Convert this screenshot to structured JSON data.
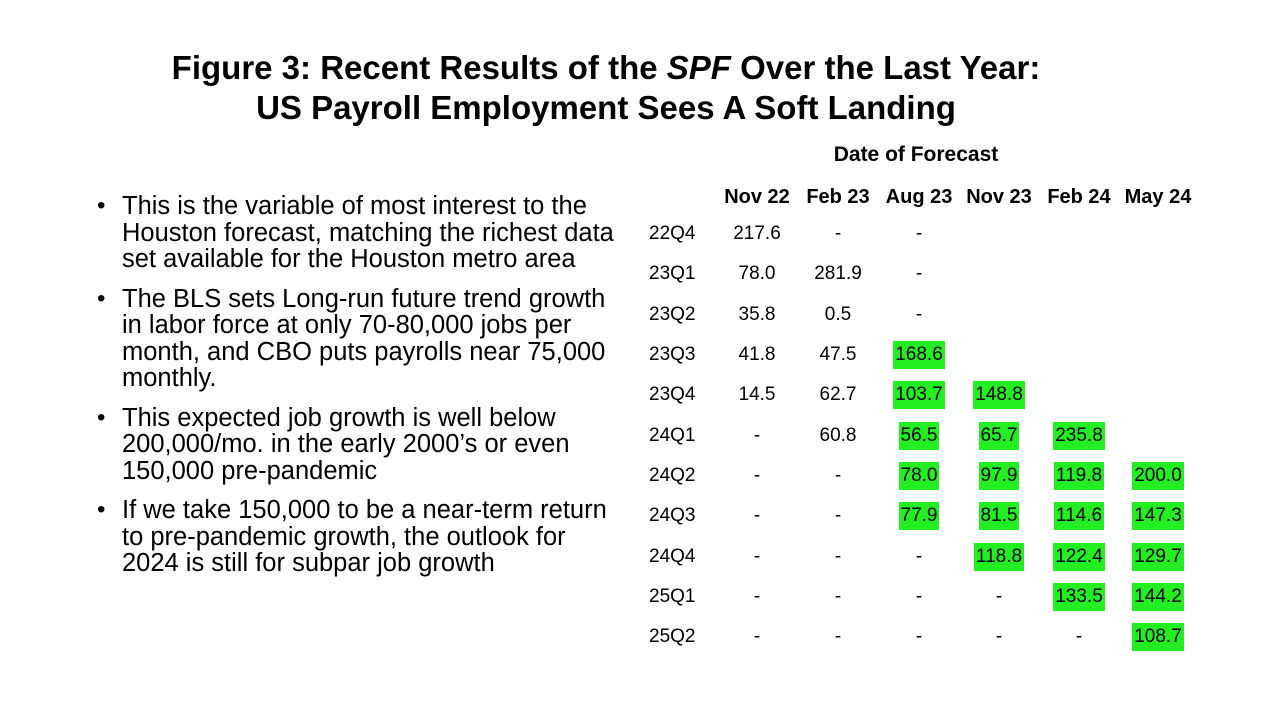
{
  "title": {
    "line1_prefix": "Figure 3: Recent Results of the ",
    "line1_italic": "SPF",
    "line1_suffix": " Over the Last Year:",
    "line2": "US Payroll Employment Sees A Soft Landing"
  },
  "bullets": [
    "This is the variable of most interest to the Houston forecast, matching the richest data set available for the Houston metro area",
    "The BLS sets Long-run future trend growth in labor force at only 70-80,000 jobs per month, and CBO puts payrolls near 75,000 monthly.",
    "This expected job growth is well below 200,000/mo. in the early 2000’s or even 150,000 pre-pandemic",
    "If we take 150,000 to be a near-term return to pre-pandemic growth, the outlook for 2024 is still for subpar job growth"
  ],
  "bullet_glyph": "•",
  "table": {
    "heading": "Date of Forecast",
    "columns": [
      "Nov 22",
      "Feb 23",
      "Aug 23",
      "Nov 23",
      "Feb 24",
      "May 24"
    ],
    "highlight_color": "#22ee22",
    "rows": [
      {
        "label": "22Q4",
        "cells": [
          {
            "v": "217.6",
            "hl": false
          },
          {
            "v": "-",
            "hl": false
          },
          {
            "v": "-",
            "hl": false
          },
          {
            "v": "",
            "hl": false
          },
          {
            "v": "",
            "hl": false
          },
          {
            "v": "",
            "hl": false
          }
        ]
      },
      {
        "label": "23Q1",
        "cells": [
          {
            "v": "78.0",
            "hl": false
          },
          {
            "v": "281.9",
            "hl": false
          },
          {
            "v": "-",
            "hl": false
          },
          {
            "v": "",
            "hl": false
          },
          {
            "v": "",
            "hl": false
          },
          {
            "v": "",
            "hl": false
          }
        ]
      },
      {
        "label": "23Q2",
        "cells": [
          {
            "v": "35.8",
            "hl": false
          },
          {
            "v": "0.5",
            "hl": false
          },
          {
            "v": "-",
            "hl": false
          },
          {
            "v": "",
            "hl": false
          },
          {
            "v": "",
            "hl": false
          },
          {
            "v": "",
            "hl": false
          }
        ]
      },
      {
        "label": "23Q3",
        "cells": [
          {
            "v": "41.8",
            "hl": false
          },
          {
            "v": "47.5",
            "hl": false
          },
          {
            "v": "168.6",
            "hl": true
          },
          {
            "v": "",
            "hl": false
          },
          {
            "v": "",
            "hl": false
          },
          {
            "v": "",
            "hl": false
          }
        ]
      },
      {
        "label": "23Q4",
        "cells": [
          {
            "v": "14.5",
            "hl": false
          },
          {
            "v": "62.7",
            "hl": false
          },
          {
            "v": "103.7",
            "hl": true
          },
          {
            "v": "148.8",
            "hl": true
          },
          {
            "v": "",
            "hl": false
          },
          {
            "v": "",
            "hl": false
          }
        ]
      },
      {
        "label": "24Q1",
        "cells": [
          {
            "v": "-",
            "hl": false
          },
          {
            "v": "60.8",
            "hl": false
          },
          {
            "v": "56.5",
            "hl": true
          },
          {
            "v": "65.7",
            "hl": true
          },
          {
            "v": "235.8",
            "hl": true
          },
          {
            "v": "",
            "hl": false
          }
        ]
      },
      {
        "label": "24Q2",
        "cells": [
          {
            "v": "-",
            "hl": false
          },
          {
            "v": "-",
            "hl": false
          },
          {
            "v": "78.0",
            "hl": true
          },
          {
            "v": "97.9",
            "hl": true
          },
          {
            "v": "119.8",
            "hl": true
          },
          {
            "v": "200.0",
            "hl": true
          }
        ]
      },
      {
        "label": "24Q3",
        "cells": [
          {
            "v": "-",
            "hl": false
          },
          {
            "v": "-",
            "hl": false
          },
          {
            "v": "77.9",
            "hl": true
          },
          {
            "v": "81.5",
            "hl": true
          },
          {
            "v": "114.6",
            "hl": true
          },
          {
            "v": "147.3",
            "hl": true
          }
        ]
      },
      {
        "label": "24Q4",
        "cells": [
          {
            "v": "-",
            "hl": false
          },
          {
            "v": "-",
            "hl": false
          },
          {
            "v": "-",
            "hl": false
          },
          {
            "v": "118.8",
            "hl": true
          },
          {
            "v": "122.4",
            "hl": true
          },
          {
            "v": "129.7",
            "hl": true
          }
        ]
      },
      {
        "label": "25Q1",
        "cells": [
          {
            "v": "-",
            "hl": false
          },
          {
            "v": "-",
            "hl": false
          },
          {
            "v": "-",
            "hl": false
          },
          {
            "v": "-",
            "hl": false
          },
          {
            "v": "133.5",
            "hl": true
          },
          {
            "v": "144.2",
            "hl": true
          }
        ]
      },
      {
        "label": "25Q2",
        "cells": [
          {
            "v": "-",
            "hl": false
          },
          {
            "v": "-",
            "hl": false
          },
          {
            "v": "-",
            "hl": false
          },
          {
            "v": "-",
            "hl": false
          },
          {
            "v": "-",
            "hl": false
          },
          {
            "v": "108.7",
            "hl": true
          }
        ]
      }
    ]
  }
}
